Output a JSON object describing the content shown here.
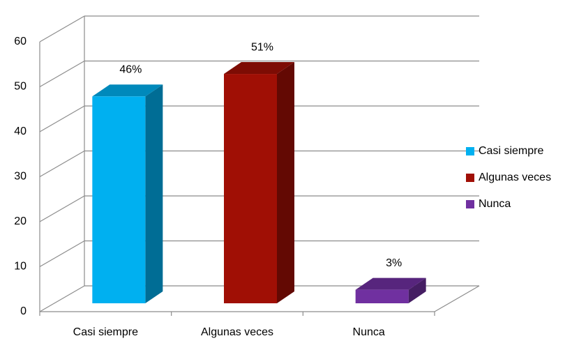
{
  "chart_data": {
    "type": "bar3d",
    "categories": [
      "Casi siempre",
      "Algunas veces",
      "Nunca"
    ],
    "values": [
      46,
      51,
      3
    ],
    "value_labels": [
      "46%",
      "51%",
      "3%"
    ],
    "colors": [
      "#00b0f0",
      "#a00f05",
      "#7030a0"
    ],
    "ylim": [
      0,
      60
    ],
    "yticks": [
      0,
      10,
      20,
      30,
      40,
      50,
      60
    ],
    "grid": true,
    "legend": "right"
  }
}
